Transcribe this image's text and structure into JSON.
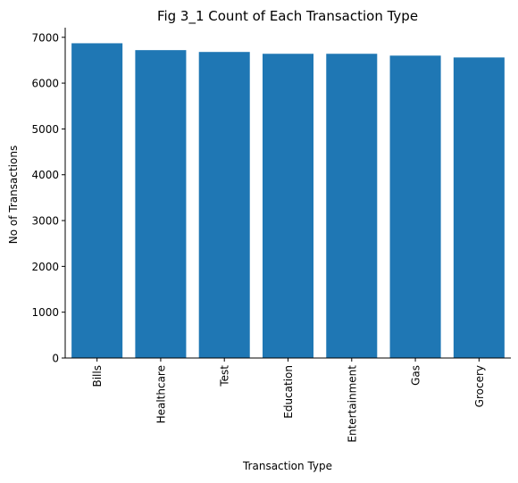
{
  "chart_data": {
    "type": "bar",
    "title": "Fig 3_1 Count of Each Transaction Type",
    "xlabel": "Transaction Type",
    "ylabel": "No of Transactions",
    "categories": [
      "Bills",
      "Healthcare",
      "Test",
      "Education",
      "Entertainment",
      "Gas",
      "Grocery"
    ],
    "values": [
      6870,
      6720,
      6680,
      6640,
      6640,
      6600,
      6560
    ],
    "yticks": [
      0,
      1000,
      2000,
      3000,
      4000,
      5000,
      6000,
      7000
    ],
    "ylim": [
      0,
      7210
    ],
    "bar_color": "#1f77b4",
    "grid": false,
    "spines": [
      "left",
      "bottom"
    ]
  }
}
